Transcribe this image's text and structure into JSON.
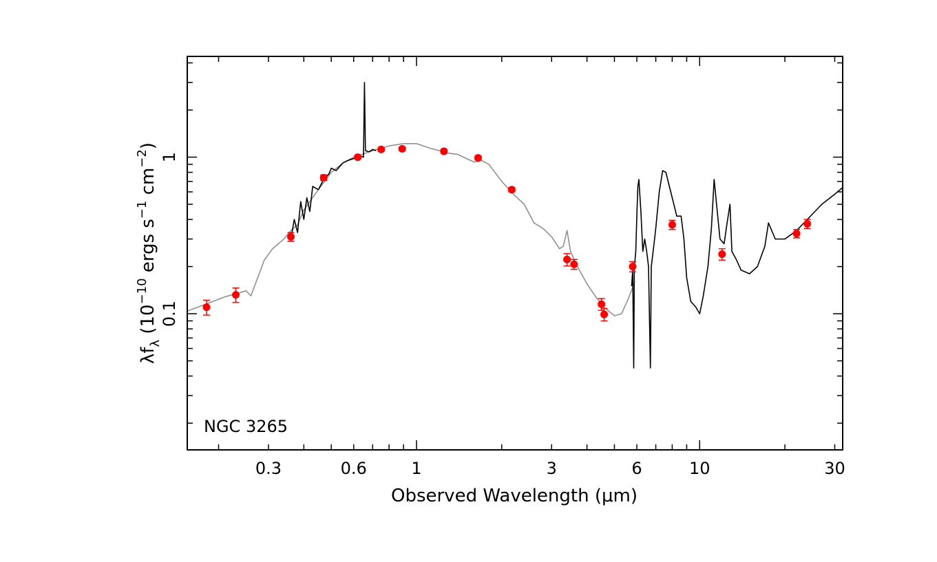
{
  "chart_data": {
    "type": "scatter",
    "annotation": "NGC 3265",
    "xlabel": "Observed Wavelength (μm)",
    "ylabel": {
      "prefix": "λf",
      "sub": "λ",
      "mid1": " (10",
      "exp1": "−10",
      "mid2": " ergs s",
      "exp2": "−1",
      "mid3": " cm",
      "exp3": "−2",
      "suffix": ")"
    },
    "x_scale": "log",
    "y_scale": "log",
    "xlim": [
      0.155,
      32
    ],
    "ylim": [
      0.0135,
      4.4
    ],
    "x_ticks": [
      {
        "value": 0.3,
        "label": "0.3"
      },
      {
        "value": 0.6,
        "label": "0.6"
      },
      {
        "value": 1,
        "label": "1"
      },
      {
        "value": 3,
        "label": "3"
      },
      {
        "value": 6,
        "label": "6"
      },
      {
        "value": 10,
        "label": "10"
      },
      {
        "value": 30,
        "label": "30"
      }
    ],
    "y_ticks": [
      {
        "value": 0.1,
        "label": "0.1"
      },
      {
        "value": 1,
        "label": "1"
      }
    ],
    "grid": false,
    "colors": {
      "photometry": "#ff0000",
      "model": "#909090",
      "spectrum": "#000000",
      "axes": "#000000"
    },
    "series": [
      {
        "kind": "points_with_errorbars",
        "points": [
          {
            "x": 0.153,
            "y": 0.11,
            "err": 0.012
          },
          {
            "x": 0.23,
            "y": 0.132,
            "err": 0.014
          },
          {
            "x": 0.36,
            "y": 0.31,
            "err": 0.02
          },
          {
            "x": 0.47,
            "y": 0.74,
            "err": 0.03
          },
          {
            "x": 0.62,
            "y": 1.0,
            "err": 0.03
          },
          {
            "x": 0.75,
            "y": 1.12,
            "err": 0.03
          },
          {
            "x": 0.89,
            "y": 1.13,
            "err": 0.03
          },
          {
            "x": 1.25,
            "y": 1.09,
            "err": 0.03
          },
          {
            "x": 1.65,
            "y": 0.99,
            "err": 0.03
          },
          {
            "x": 2.17,
            "y": 0.62,
            "err": 0.02
          },
          {
            "x": 3.4,
            "y": 0.222,
            "err": 0.02
          },
          {
            "x": 3.6,
            "y": 0.207,
            "err": 0.015
          },
          {
            "x": 4.5,
            "y": 0.115,
            "err": 0.01
          },
          {
            "x": 4.6,
            "y": 0.099,
            "err": 0.009
          },
          {
            "x": 5.8,
            "y": 0.2,
            "err": 0.015
          },
          {
            "x": 8.0,
            "y": 0.37,
            "err": 0.025
          },
          {
            "x": 12.0,
            "y": 0.24,
            "err": 0.02
          },
          {
            "x": 22.0,
            "y": 0.325,
            "err": 0.02
          },
          {
            "x": 24.0,
            "y": 0.375,
            "err": 0.025
          }
        ]
      },
      {
        "kind": "model_line",
        "points": [
          [
            0.155,
            0.104
          ],
          [
            0.18,
            0.115
          ],
          [
            0.21,
            0.128
          ],
          [
            0.25,
            0.14
          ],
          [
            0.26,
            0.13
          ],
          [
            0.275,
            0.17
          ],
          [
            0.29,
            0.22
          ],
          [
            0.31,
            0.26
          ],
          [
            0.34,
            0.3
          ],
          [
            0.36,
            0.34
          ],
          [
            0.38,
            0.37
          ],
          [
            0.4,
            0.46
          ],
          [
            0.45,
            0.62
          ],
          [
            0.5,
            0.8
          ],
          [
            0.55,
            0.92
          ],
          [
            0.6,
            1.0
          ],
          [
            0.7,
            1.1
          ],
          [
            0.8,
            1.18
          ],
          [
            0.9,
            1.22
          ],
          [
            1.0,
            1.22
          ],
          [
            1.1,
            1.15
          ],
          [
            1.2,
            1.1
          ],
          [
            1.3,
            1.06
          ],
          [
            1.4,
            1.04
          ],
          [
            1.5,
            0.98
          ],
          [
            1.6,
            0.93
          ],
          [
            1.7,
            0.95
          ],
          [
            1.8,
            0.9
          ],
          [
            2.0,
            0.7
          ],
          [
            2.2,
            0.58
          ],
          [
            2.4,
            0.5
          ],
          [
            2.6,
            0.38
          ],
          [
            2.8,
            0.35
          ],
          [
            3.0,
            0.31
          ],
          [
            3.2,
            0.26
          ],
          [
            3.3,
            0.27
          ],
          [
            3.4,
            0.34
          ],
          [
            3.5,
            0.25
          ],
          [
            3.7,
            0.2
          ],
          [
            4.0,
            0.155
          ],
          [
            4.3,
            0.128
          ],
          [
            4.6,
            0.11
          ],
          [
            5.0,
            0.097
          ],
          [
            5.3,
            0.1
          ],
          [
            5.6,
            0.125
          ],
          [
            5.9,
            0.16
          ]
        ]
      },
      {
        "kind": "spectrum_optical",
        "points": [
          [
            0.36,
            0.3
          ],
          [
            0.37,
            0.4
          ],
          [
            0.38,
            0.33
          ],
          [
            0.39,
            0.52
          ],
          [
            0.4,
            0.4
          ],
          [
            0.41,
            0.55
          ],
          [
            0.42,
            0.45
          ],
          [
            0.43,
            0.65
          ],
          [
            0.45,
            0.62
          ],
          [
            0.47,
            0.72
          ],
          [
            0.49,
            0.78
          ],
          [
            0.5,
            0.85
          ],
          [
            0.52,
            0.82
          ],
          [
            0.55,
            0.92
          ],
          [
            0.58,
            0.96
          ],
          [
            0.6,
            0.98
          ],
          [
            0.63,
            1.02
          ],
          [
            0.65,
            1.0
          ],
          [
            0.655,
            3.0
          ],
          [
            0.66,
            1.1
          ],
          [
            0.68,
            1.08
          ],
          [
            0.7,
            1.12
          ],
          [
            0.72,
            1.1
          ]
        ]
      },
      {
        "kind": "spectrum_ir",
        "points": [
          [
            5.75,
            0.15
          ],
          [
            5.8,
            0.19
          ],
          [
            5.85,
            0.045
          ],
          [
            5.88,
            0.2
          ],
          [
            5.95,
            0.25
          ],
          [
            6.0,
            0.42
          ],
          [
            6.05,
            0.65
          ],
          [
            6.1,
            0.72
          ],
          [
            6.2,
            0.45
          ],
          [
            6.3,
            0.25
          ],
          [
            6.4,
            0.3
          ],
          [
            6.5,
            0.25
          ],
          [
            6.6,
            0.2
          ],
          [
            6.7,
            0.045
          ],
          [
            6.75,
            0.2
          ],
          [
            6.9,
            0.28
          ],
          [
            7.0,
            0.35
          ],
          [
            7.2,
            0.6
          ],
          [
            7.4,
            0.82
          ],
          [
            7.6,
            0.8
          ],
          [
            7.8,
            0.66
          ],
          [
            8.0,
            0.55
          ],
          [
            8.3,
            0.42
          ],
          [
            8.6,
            0.42
          ],
          [
            8.8,
            0.3
          ],
          [
            9.0,
            0.17
          ],
          [
            9.3,
            0.12
          ],
          [
            9.7,
            0.11
          ],
          [
            10.0,
            0.1
          ],
          [
            10.3,
            0.13
          ],
          [
            10.7,
            0.2
          ],
          [
            11.0,
            0.35
          ],
          [
            11.25,
            0.72
          ],
          [
            11.5,
            0.48
          ],
          [
            11.8,
            0.3
          ],
          [
            12.2,
            0.28
          ],
          [
            12.5,
            0.38
          ],
          [
            12.8,
            0.5
          ],
          [
            13.0,
            0.25
          ],
          [
            13.5,
            0.22
          ],
          [
            14.0,
            0.19
          ],
          [
            15.0,
            0.18
          ],
          [
            16.0,
            0.2
          ],
          [
            17.0,
            0.27
          ],
          [
            17.5,
            0.38
          ],
          [
            18.5,
            0.3
          ],
          [
            20.0,
            0.3
          ],
          [
            22.0,
            0.34
          ],
          [
            24.0,
            0.4
          ],
          [
            27.0,
            0.5
          ],
          [
            30.0,
            0.58
          ],
          [
            32.0,
            0.64
          ]
        ]
      }
    ]
  }
}
